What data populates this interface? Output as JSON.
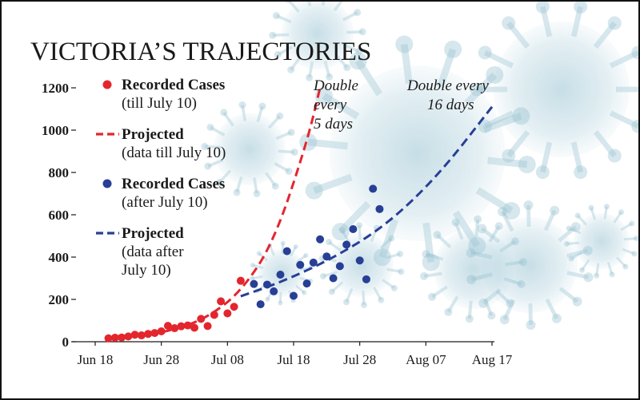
{
  "chart_data": {
    "type": "scatter",
    "title": "VICTORIA’S TRAJECTORIES",
    "x_ticks": [
      "Jun 18",
      "Jun 28",
      "Jul 08",
      "Jul 18",
      "Jul 28",
      "Aug 07",
      "Aug 17"
    ],
    "y_ticks": [
      "0",
      "200",
      "400",
      "600",
      "800",
      "1000",
      "1200"
    ],
    "xlim": [
      "Jun 18",
      "Aug 17"
    ],
    "ylim": [
      0,
      1200
    ],
    "grid": false,
    "legend_position": "top-left",
    "legend": [
      {
        "line1": "Recorded Cases",
        "line2": "(till July 10)",
        "line3": ""
      },
      {
        "line1": "Projected",
        "line2": "(data till July 10)",
        "line3": ""
      },
      {
        "line1": "Recorded Cases",
        "line2": "(after July 10)",
        "line3": ""
      },
      {
        "line1": "Projected",
        "line2": "(data after",
        "line3": "July 10)"
      }
    ],
    "annotations": [
      {
        "line1": "Double",
        "line2": "every",
        "line3": "5 days"
      },
      {
        "line1": "Double every",
        "line2": "16 days",
        "line3": ""
      }
    ],
    "series": [
      {
        "style": "points",
        "color": "#e3262e",
        "points": [
          [
            "Jun 20",
            16
          ],
          [
            "Jun 21",
            19
          ],
          [
            "Jun 22",
            20
          ],
          [
            "Jun 23",
            25
          ],
          [
            "Jun 24",
            33
          ],
          [
            "Jun 25",
            30
          ],
          [
            "Jun 26",
            37
          ],
          [
            "Jun 27",
            41
          ],
          [
            "Jun 28",
            49
          ],
          [
            "Jun 29",
            75
          ],
          [
            "Jun 30",
            64
          ],
          [
            "Jul 1",
            73
          ],
          [
            "Jul 2",
            77
          ],
          [
            "Jul 3",
            66
          ],
          [
            "Jul 4",
            108
          ],
          [
            "Jul 5",
            74
          ],
          [
            "Jul 6",
            127
          ],
          [
            "Jul 7",
            191
          ],
          [
            "Jul 8",
            134
          ],
          [
            "Jul 9",
            165
          ],
          [
            "Jul 10",
            288
          ]
        ]
      },
      {
        "style": "dashed",
        "color": "#e3262e",
        "points": [
          [
            "Jun 20",
            16
          ],
          [
            "Jun 25",
            28
          ],
          [
            "Jun 30",
            56
          ],
          [
            "Jul 5",
            115
          ],
          [
            "Jul 10",
            235
          ],
          [
            "Jul 15",
            470
          ],
          [
            "Jul 20",
            940
          ],
          [
            "Jul 22",
            1200
          ]
        ]
      },
      {
        "style": "points",
        "color": "#283f96",
        "points": [
          [
            "Jul 12",
            273
          ],
          [
            "Jul 13",
            177
          ],
          [
            "Jul 14",
            270
          ],
          [
            "Jul 15",
            238
          ],
          [
            "Jul 16",
            317
          ],
          [
            "Jul 17",
            428
          ],
          [
            "Jul 18",
            217
          ],
          [
            "Jul 19",
            363
          ],
          [
            "Jul 20",
            275
          ],
          [
            "Jul 21",
            374
          ],
          [
            "Jul 22",
            484
          ],
          [
            "Jul 23",
            403
          ],
          [
            "Jul 24",
            300
          ],
          [
            "Jul 25",
            357
          ],
          [
            "Jul 26",
            459
          ],
          [
            "Jul 27",
            532
          ],
          [
            "Jul 28",
            384
          ],
          [
            "Jul 29",
            295
          ],
          [
            "Jul 30",
            723
          ],
          [
            "Jul 31",
            627
          ]
        ]
      },
      {
        "style": "dashed",
        "color": "#283f96",
        "points": [
          [
            "Jul 10",
            215
          ],
          [
            "Jul 16",
            280
          ],
          [
            "Jul 24",
            395
          ],
          [
            "Aug 1",
            550
          ],
          [
            "Aug 9",
            790
          ],
          [
            "Aug 17",
            1110
          ]
        ]
      }
    ]
  }
}
